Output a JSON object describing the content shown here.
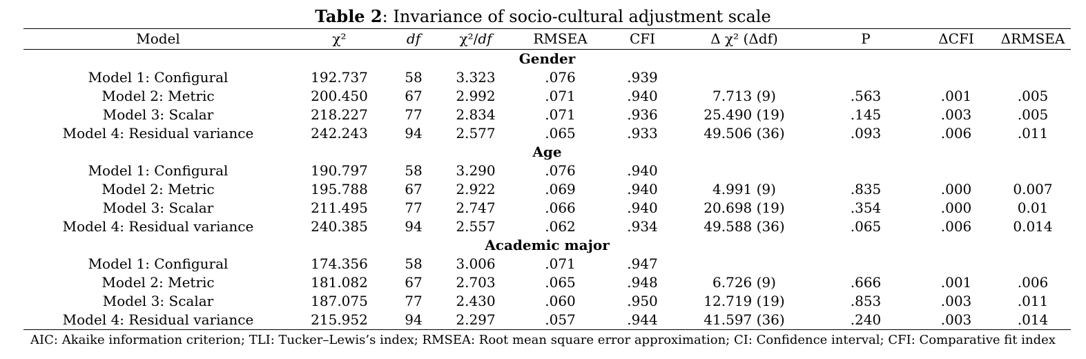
{
  "caption": {
    "label": "Table 2",
    "title": ": Invariance of socio-cultural adjustment scale"
  },
  "headers": {
    "model": "Model",
    "chi2": "χ²",
    "df": "df",
    "chi2df_a": "χ²/",
    "chi2df_b": "df",
    "rmsea": "RMSEA",
    "cfi": "CFI",
    "dchi2": "Δ χ² (Δdf)",
    "p": "P",
    "dcfi": "ΔCFI",
    "drmsea": "ΔRMSEA"
  },
  "groups": [
    {
      "label": "Gender",
      "rows": [
        {
          "model": "Model 1: Configural",
          "chi2": "192.737",
          "df": "58",
          "chi2df": "3.323",
          "rmsea": ".076",
          "cfi": ".939",
          "dchi2": "",
          "p": "",
          "dcfi": "",
          "drmsea": ""
        },
        {
          "model": "Model 2: Metric",
          "chi2": "200.450",
          "df": "67",
          "chi2df": "2.992",
          "rmsea": ".071",
          "cfi": ".940",
          "dchi2": "7.713 (9)",
          "p": ".563",
          "dcfi": ".001",
          "drmsea": ".005"
        },
        {
          "model": "Model 3: Scalar",
          "chi2": "218.227",
          "df": "77",
          "chi2df": "2.834",
          "rmsea": ".071",
          "cfi": ".936",
          "dchi2": "25.490 (19)",
          "p": ".145",
          "dcfi": ".003",
          "drmsea": ".005"
        },
        {
          "model": "Model 4: Residual variance",
          "chi2": "242.243",
          "df": "94",
          "chi2df": "2.577",
          "rmsea": ".065",
          "cfi": ".933",
          "dchi2": "49.506 (36)",
          "p": ".093",
          "dcfi": ".006",
          "drmsea": ".011"
        }
      ]
    },
    {
      "label": "Age",
      "rows": [
        {
          "model": "Model 1: Configural",
          "chi2": "190.797",
          "df": "58",
          "chi2df": "3.290",
          "rmsea": ".076",
          "cfi": ".940",
          "dchi2": "",
          "p": "",
          "dcfi": "",
          "drmsea": ""
        },
        {
          "model": "Model 2: Metric",
          "chi2": "195.788",
          "df": "67",
          "chi2df": "2.922",
          "rmsea": ".069",
          "cfi": ".940",
          "dchi2": "4.991 (9)",
          "p": ".835",
          "dcfi": ".000",
          "drmsea": "0.007"
        },
        {
          "model": "Model 3: Scalar",
          "chi2": "211.495",
          "df": "77",
          "chi2df": "2.747",
          "rmsea": ".066",
          "cfi": ".940",
          "dchi2": "20.698 (19)",
          "p": ".354",
          "dcfi": ".000",
          "drmsea": "0.01"
        },
        {
          "model": "Model 4: Residual variance",
          "chi2": "240.385",
          "df": "94",
          "chi2df": "2.557",
          "rmsea": ".062",
          "cfi": ".934",
          "dchi2": "49.588 (36)",
          "p": ".065",
          "dcfi": ".006",
          "drmsea": "0.014"
        }
      ]
    },
    {
      "label": "Academic major",
      "rows": [
        {
          "model": "Model 1: Configural",
          "chi2": "174.356",
          "df": "58",
          "chi2df": "3.006",
          "rmsea": ".071",
          "cfi": ".947",
          "dchi2": "",
          "p": "",
          "dcfi": "",
          "drmsea": ""
        },
        {
          "model": "Model 2: Metric",
          "chi2": "181.082",
          "df": "67",
          "chi2df": "2.703",
          "rmsea": ".065",
          "cfi": ".948",
          "dchi2": "6.726 (9)",
          "p": ".666",
          "dcfi": ".001",
          "drmsea": ".006"
        },
        {
          "model": "Model 3: Scalar",
          "chi2": "187.075",
          "df": "77",
          "chi2df": "2.430",
          "rmsea": ".060",
          "cfi": ".950",
          "dchi2": "12.719 (19)",
          "p": ".853",
          "dcfi": ".003",
          "drmsea": ".011"
        },
        {
          "model": "Model 4: Residual variance",
          "chi2": "215.952",
          "df": "94",
          "chi2df": "2.297",
          "rmsea": ".057",
          "cfi": ".944",
          "dchi2": "41.597 (36)",
          "p": ".240",
          "dcfi": ".003",
          "drmsea": ".014"
        }
      ]
    }
  ],
  "footnote": "AIC: Akaike information criterion; TLI: Tucker–Lewis’s index; RMSEA: Root mean square error approximation; CI: Confidence interval; CFI: Comparative fit index"
}
